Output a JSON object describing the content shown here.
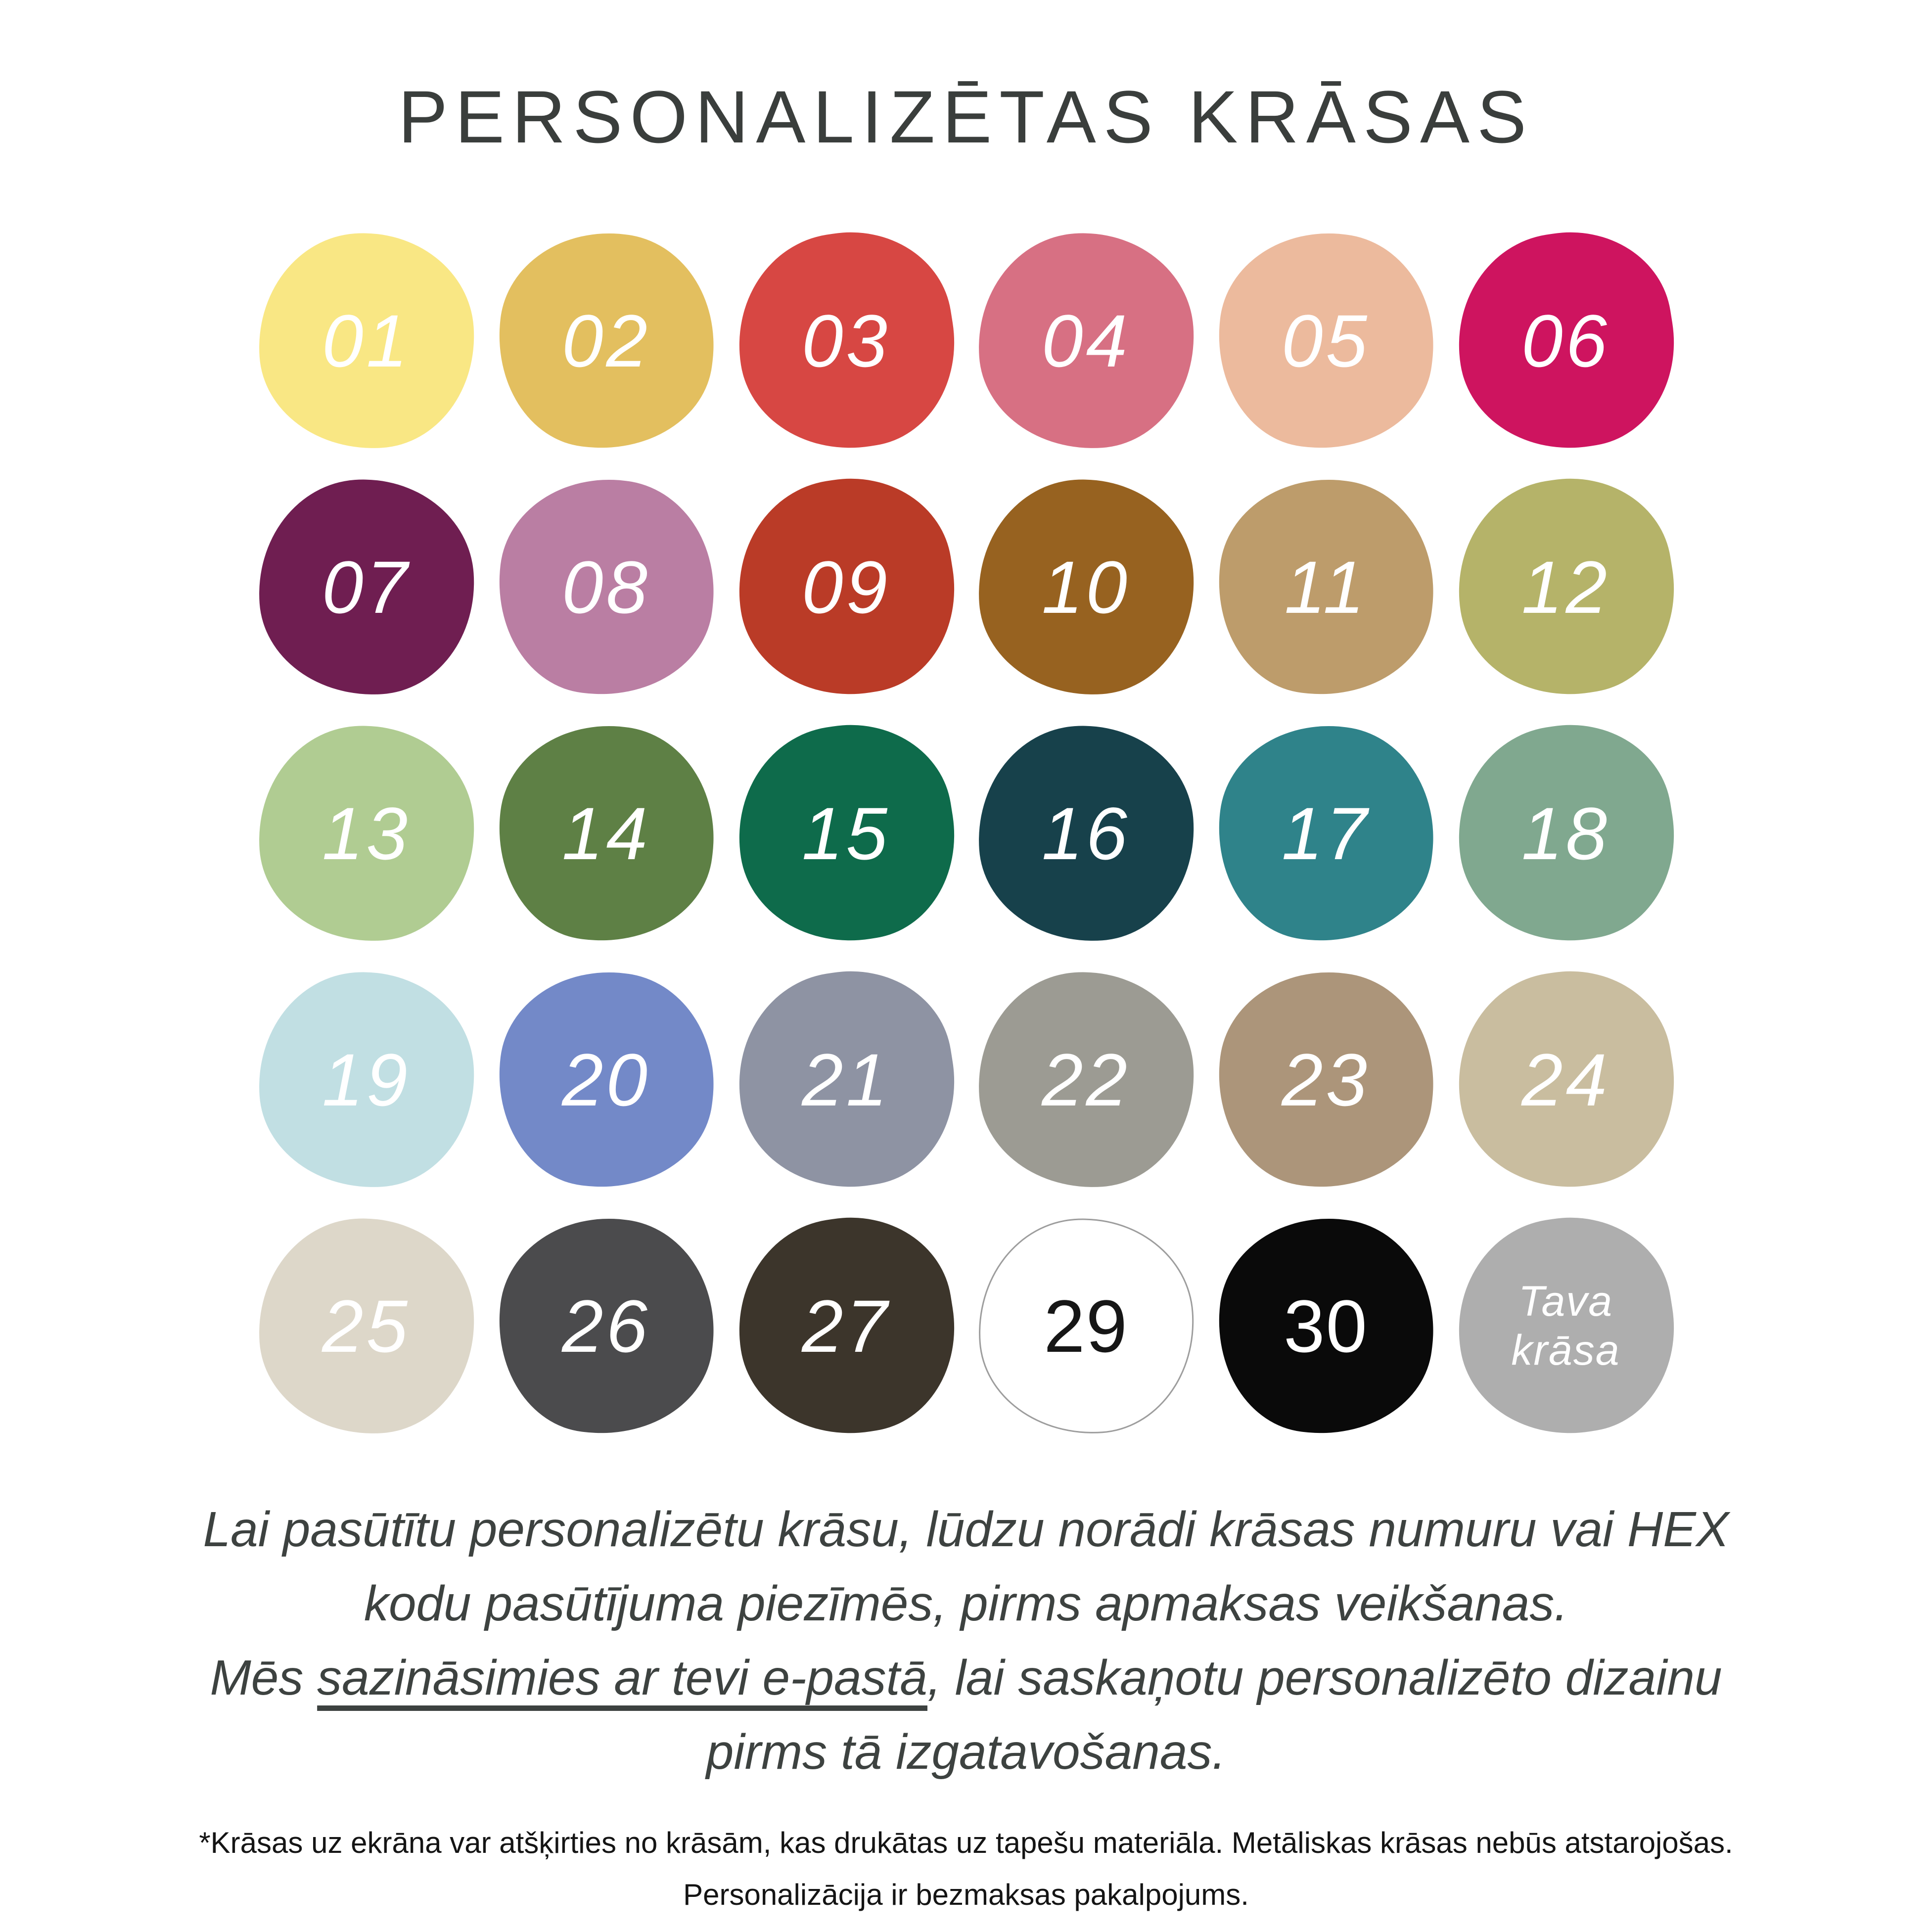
{
  "title": "PERSONALIZĒTAS KRĀSAS",
  "swatches": [
    {
      "label": "01",
      "color": "#F9E784",
      "text_color": "#FFFFFF"
    },
    {
      "label": "02",
      "color": "#E3BF5F",
      "text_color": "#FFFFFF"
    },
    {
      "label": "03",
      "color": "#D74743",
      "text_color": "#FFFFFF"
    },
    {
      "label": "04",
      "color": "#D77083",
      "text_color": "#FFFFFF"
    },
    {
      "label": "05",
      "color": "#ECBA9D",
      "text_color": "#FFFFFF"
    },
    {
      "label": "06",
      "color": "#CE145F",
      "text_color": "#FFFFFF"
    },
    {
      "label": "07",
      "color": "#6F1E51",
      "text_color": "#FFFFFF"
    },
    {
      "label": "08",
      "color": "#BA7EA3",
      "text_color": "#FFFFFF"
    },
    {
      "label": "09",
      "color": "#BA3B27",
      "text_color": "#FFFFFF"
    },
    {
      "label": "10",
      "color": "#976220",
      "text_color": "#FFFFFF"
    },
    {
      "label": "11",
      "color": "#BD9C6B",
      "text_color": "#FFFFFF"
    },
    {
      "label": "12",
      "color": "#B5B369",
      "text_color": "#FFFFFF"
    },
    {
      "label": "13",
      "color": "#B0CC92",
      "text_color": "#FFFFFF"
    },
    {
      "label": "14",
      "color": "#5E8045",
      "text_color": "#FFFFFF"
    },
    {
      "label": "15",
      "color": "#0E6B4B",
      "text_color": "#FFFFFF"
    },
    {
      "label": "16",
      "color": "#17414B",
      "text_color": "#FFFFFF"
    },
    {
      "label": "17",
      "color": "#2F838A",
      "text_color": "#FFFFFF"
    },
    {
      "label": "18",
      "color": "#80A88F",
      "text_color": "#FFFFFF"
    },
    {
      "label": "19",
      "color": "#C1DFE3",
      "text_color": "#FFFFFF"
    },
    {
      "label": "20",
      "color": "#7389C8",
      "text_color": "#FFFFFF"
    },
    {
      "label": "21",
      "color": "#8E93A3",
      "text_color": "#FFFFFF"
    },
    {
      "label": "22",
      "color": "#9C9B93",
      "text_color": "#FFFFFF"
    },
    {
      "label": "23",
      "color": "#AC957A",
      "text_color": "#FFFFFF"
    },
    {
      "label": "24",
      "color": "#C9BD9F",
      "text_color": "#FFFFFF"
    },
    {
      "label": "25",
      "color": "#DDD7C9",
      "text_color": "#FFFFFF"
    },
    {
      "label": "26",
      "color": "#4B4B4D",
      "text_color": "#FFFFFF"
    },
    {
      "label": "27",
      "color": "#3C352B",
      "text_color": "#FFFFFF"
    },
    {
      "label": "29",
      "color": "#FFFFFF",
      "text_color": "#161616",
      "outline": "#9D9D9D",
      "upright": true
    },
    {
      "label": "30",
      "color": "#0A0A0A",
      "text_color": "#FFFFFF",
      "upright": true
    },
    {
      "label": "Tava krāsa",
      "color": "#AEAEAE",
      "text_color": "#FFFFFF",
      "lines": [
        "Tava",
        "krāsa"
      ]
    }
  ],
  "note": {
    "line1": "Lai pasūtītu personalizētu krāsu, lūdzu norādi krāsas numuru vai HEX",
    "line2": "kodu pasūtījuma piezīmēs, pirms apmaksas veikšanas.",
    "line3_prefix": "Mēs ",
    "line3_underlined": "sazināsimies ar tevi e-pastā",
    "line3_suffix": ", lai saskaņotu personalizēto dizainu",
    "line4": "pirms tā izgatavošanas."
  },
  "footnote": {
    "line1": "*Krāsas uz ekrāna var atšķirties no krāsām, kas drukātas uz tapešu materiāla. Metāliskas krāsas nebūs atstarojošas.",
    "line2": "Personalizācija ir bezmaksas pakalpojums."
  }
}
